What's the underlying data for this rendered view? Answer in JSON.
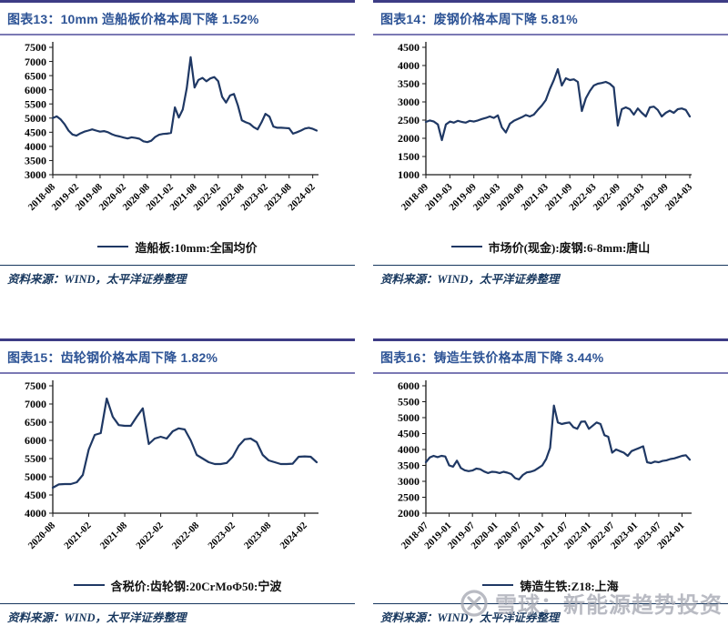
{
  "strings": {
    "source_note": "资料来源：WIND，太平洋证券整理"
  },
  "colors": {
    "line": "#1f3864",
    "title_text": "#2e5496",
    "panel_top_border": "#3d3c85",
    "title_rule": "#7b79b4",
    "source_rule": "#17375e",
    "axis": "#1a1a1a",
    "tick_text": "#000000",
    "watermark": "#a6a8b3"
  },
  "watermark": {
    "logo": "xueqiu-circle-x-icon",
    "text": "雪球：新能源趋势投资"
  },
  "chart_data": [
    {
      "id": "fig13",
      "type": "line",
      "title": "图表13：10mm 造船板价格本周下降 1.52%",
      "legend_position": "bottom",
      "grid": false,
      "ylim": [
        3000,
        7500
      ],
      "y_step": 500,
      "x_ticks": [
        "2018-08",
        "2019-02",
        "2019-08",
        "2020-02",
        "2020-08",
        "2021-02",
        "2021-08",
        "2022-02",
        "2022-08",
        "2023-02",
        "2023-08",
        "2024-02"
      ],
      "tick_step_points": 6,
      "line_color": "#1f3864",
      "series": [
        {
          "name": "造船板:10mm:全国均价",
          "values": [
            5000,
            5060,
            4950,
            4780,
            4560,
            4420,
            4380,
            4460,
            4520,
            4560,
            4600,
            4560,
            4520,
            4540,
            4500,
            4430,
            4380,
            4350,
            4310,
            4280,
            4320,
            4300,
            4270,
            4180,
            4150,
            4200,
            4330,
            4410,
            4440,
            4450,
            4480,
            5380,
            5020,
            5300,
            6050,
            7150,
            6080,
            6350,
            6420,
            6300,
            6400,
            6450,
            6300,
            5750,
            5550,
            5800,
            5850,
            5450,
            4920,
            4850,
            4800,
            4680,
            4600,
            4850,
            5150,
            5050,
            4700,
            4660,
            4660,
            4650,
            4640,
            4450,
            4500,
            4560,
            4630,
            4660,
            4620,
            4560
          ]
        }
      ]
    },
    {
      "id": "fig14",
      "type": "line",
      "title": "图表14：废钢价格本周下降 5.81%",
      "legend_position": "bottom",
      "grid": false,
      "ylim": [
        1000,
        4500
      ],
      "y_step": 500,
      "x_ticks": [
        "2018-09",
        "2019-03",
        "2019-09",
        "2020-03",
        "2020-09",
        "2021-03",
        "2021-09",
        "2022-03",
        "2022-09",
        "2023-03",
        "2023-09",
        "2024-03"
      ],
      "tick_step_points": 6,
      "line_color": "#1f3864",
      "series": [
        {
          "name": "市场价(现金):废钢:6-8mm:唐山",
          "values": [
            2450,
            2490,
            2460,
            2380,
            1950,
            2380,
            2460,
            2430,
            2480,
            2450,
            2430,
            2480,
            2460,
            2490,
            2530,
            2560,
            2600,
            2560,
            2630,
            2300,
            2160,
            2400,
            2480,
            2530,
            2580,
            2640,
            2600,
            2650,
            2780,
            2900,
            3050,
            3350,
            3600,
            3900,
            3450,
            3650,
            3600,
            3620,
            3550,
            2750,
            3100,
            3300,
            3450,
            3500,
            3520,
            3550,
            3500,
            3400,
            2350,
            2800,
            2850,
            2800,
            2650,
            2820,
            2700,
            2600,
            2850,
            2870,
            2780,
            2600,
            2700,
            2760,
            2700,
            2800,
            2820,
            2780,
            2600
          ]
        }
      ]
    },
    {
      "id": "fig15",
      "type": "line",
      "title": "图表15：齿轮钢价格本周下降 1.82%",
      "legend_position": "bottom",
      "grid": false,
      "ylim": [
        4000,
        7500
      ],
      "y_step": 500,
      "x_ticks": [
        "2020-08",
        "2021-02",
        "2021-08",
        "2022-02",
        "2022-08",
        "2023-02",
        "2023-08",
        "2024-02"
      ],
      "tick_step_points": 6,
      "line_color": "#1f3864",
      "series": [
        {
          "name": "含税价:齿轮钢:20CrMoΦ50:宁波",
          "values": [
            4700,
            4790,
            4800,
            4800,
            4850,
            5050,
            5750,
            6150,
            6200,
            7150,
            6650,
            6420,
            6400,
            6400,
            6650,
            6880,
            5900,
            6050,
            6100,
            6050,
            6250,
            6330,
            6300,
            6000,
            5600,
            5500,
            5400,
            5350,
            5350,
            5380,
            5550,
            5850,
            6030,
            6050,
            5950,
            5600,
            5450,
            5400,
            5350,
            5350,
            5360,
            5550,
            5560,
            5550,
            5400
          ]
        }
      ]
    },
    {
      "id": "fig16",
      "type": "line",
      "title": "图表16：铸造生铁价格本周下降 3.44%",
      "legend_position": "bottom",
      "grid": false,
      "ylim": [
        2000,
        6000
      ],
      "y_step": 500,
      "x_ticks": [
        "2018-07",
        "2019-01",
        "2019-07",
        "2020-01",
        "2020-07",
        "2021-01",
        "2021-07",
        "2022-01",
        "2022-07",
        "2023-01",
        "2023-07",
        "2024-01"
      ],
      "tick_step_points": 6,
      "line_color": "#1f3864",
      "series": [
        {
          "name": "铸造生铁:Z18:上海",
          "values": [
            3600,
            3750,
            3800,
            3760,
            3800,
            3780,
            3500,
            3460,
            3650,
            3420,
            3350,
            3320,
            3340,
            3400,
            3380,
            3310,
            3260,
            3300,
            3290,
            3260,
            3300,
            3270,
            3230,
            3100,
            3060,
            3200,
            3280,
            3300,
            3340,
            3420,
            3500,
            3700,
            4050,
            5380,
            4850,
            4800,
            4830,
            4850,
            4700,
            4650,
            4870,
            4880,
            4650,
            4750,
            4850,
            4800,
            4450,
            4400,
            3900,
            4000,
            3950,
            3900,
            3800,
            3950,
            4000,
            4050,
            4100,
            3600,
            3570,
            3620,
            3600,
            3640,
            3660,
            3700,
            3720,
            3760,
            3800,
            3820,
            3680
          ]
        }
      ]
    }
  ]
}
